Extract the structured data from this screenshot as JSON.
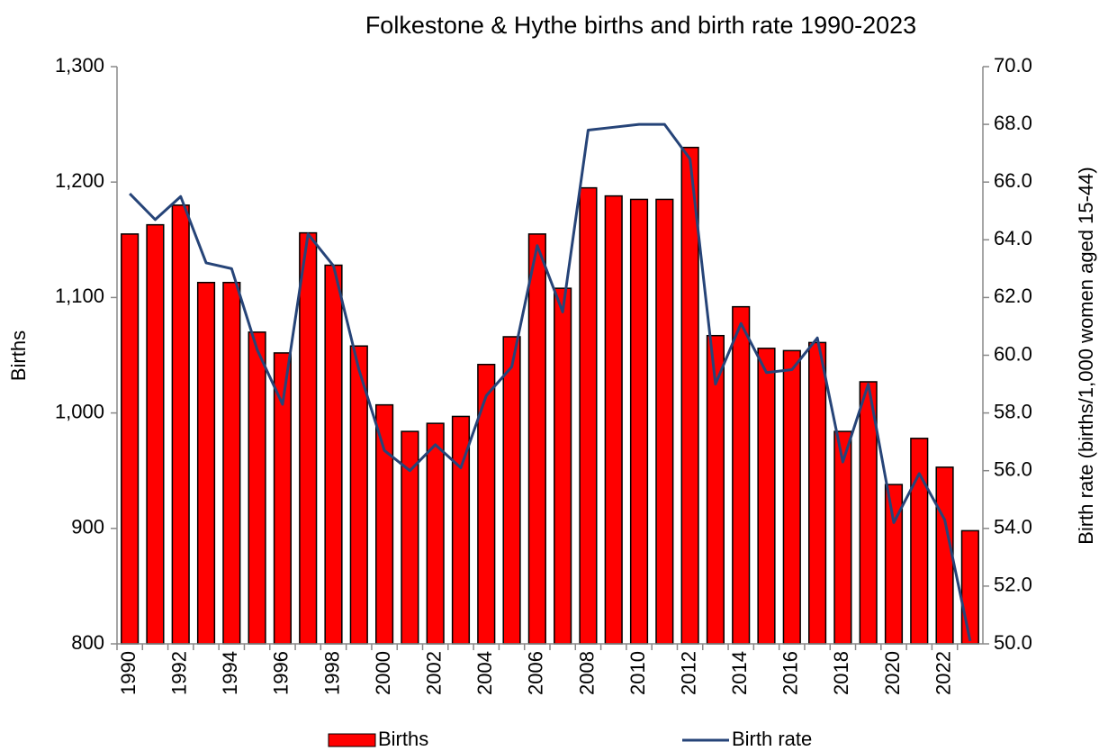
{
  "chart_data": {
    "type": "bar",
    "title": "Folkestone & Hythe births and birth rate 1990-2023",
    "y_label": "Births",
    "y2_label": "Birth rate (births/1,000 women aged 15-44)",
    "categories": [
      "1990",
      null,
      "1992",
      null,
      "1994",
      null,
      "1996",
      null,
      "1998",
      null,
      "2000",
      null,
      "2002",
      null,
      "2004",
      null,
      "2006",
      null,
      "2008",
      null,
      "2010",
      null,
      "2012",
      null,
      "2014",
      null,
      "2016",
      null,
      "2018",
      null,
      "2020",
      null,
      "2022",
      null
    ],
    "series": [
      {
        "name": "Births",
        "type": "bar",
        "color": "#ff0000",
        "values": [
          1155,
          1163,
          1180,
          1113,
          1113,
          1070,
          1052,
          1156,
          1128,
          1058,
          1007,
          984,
          991,
          997,
          1042,
          1066,
          1155,
          1108,
          1195,
          1188,
          1185,
          1185,
          1230,
          1067,
          1092,
          1056,
          1054,
          1061,
          984,
          1027,
          938,
          978,
          953,
          898
        ]
      },
      {
        "name": "Birth rate",
        "type": "line",
        "axis": "y2",
        "color": "#264478",
        "values": [
          65.6,
          64.7,
          65.5,
          63.2,
          63.0,
          60.2,
          58.3,
          64.2,
          63.1,
          59.5,
          56.7,
          56.0,
          56.9,
          56.1,
          58.6,
          59.6,
          63.8,
          61.5,
          67.8,
          67.9,
          68.0,
          68.0,
          66.8,
          59.0,
          61.1,
          59.4,
          59.5,
          60.6,
          56.3,
          59.0,
          54.2,
          55.9,
          54.3,
          50.1
        ]
      }
    ],
    "ylim": [
      800,
      1300
    ],
    "yticks": [
      800,
      900,
      {
        "value": 1000,
        "label": "1,000"
      },
      {
        "value": 1100,
        "label": "1,100"
      },
      {
        "value": 1200,
        "label": "1,200"
      },
      {
        "value": 1300,
        "label": "1,300"
      }
    ],
    "y2lim": [
      50,
      70
    ],
    "y2ticks": [
      {
        "value": 50,
        "label": "50.0"
      },
      {
        "value": 52,
        "label": "52.0"
      },
      {
        "value": 54,
        "label": "54.0"
      },
      {
        "value": 56,
        "label": "56.0"
      },
      {
        "value": 58,
        "label": "58.0"
      },
      {
        "value": 60,
        "label": "60.0"
      },
      {
        "value": 62,
        "label": "62.0"
      },
      {
        "value": 64,
        "label": "64.0"
      },
      {
        "value": 66,
        "label": "66.0"
      },
      {
        "value": 68,
        "label": "68.0"
      },
      {
        "value": 70,
        "label": "70.0"
      }
    ],
    "grid": false,
    "legend": "bottom"
  }
}
